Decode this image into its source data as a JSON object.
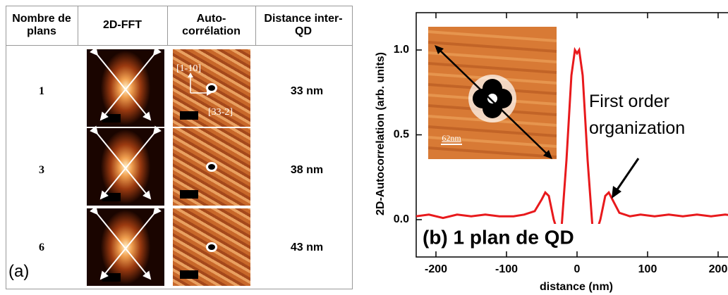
{
  "table": {
    "headers": [
      "Nombre de plans",
      "2D-FFT",
      "Auto-corrélation",
      "Distance inter-QD"
    ],
    "rows": [
      [
        "1",
        "33 nm"
      ],
      [
        "3",
        "38 nm"
      ],
      [
        "6",
        "43 nm"
      ]
    ],
    "direction_labels": [
      "[1-10]",
      "[33-2]"
    ],
    "panel_label": "(a)"
  },
  "chart_data": {
    "type": "line",
    "panel_label": "(b) 1 plan de QD",
    "x_label": "distance (nm)",
    "y_label": "2D-Autocorrelation (arb. units)",
    "annotation": "First order organization",
    "inset_scale": "62nm",
    "x": [
      -228,
      -210,
      -190,
      -170,
      -150,
      -130,
      -110,
      -90,
      -75,
      -60,
      -50,
      -45,
      -40,
      -33,
      -27,
      -22,
      -15,
      -8,
      -3,
      0,
      3,
      8,
      15,
      22,
      27,
      33,
      40,
      45,
      50,
      60,
      75,
      90,
      110,
      130,
      150,
      170,
      190,
      210,
      230
    ],
    "values": [
      0.02,
      0.03,
      0.01,
      0.03,
      0.02,
      0.03,
      0.02,
      0.02,
      0.03,
      0.05,
      0.12,
      0.16,
      0.14,
      0.0,
      -0.08,
      -0.05,
      0.35,
      0.85,
      1.0,
      0.98,
      1.0,
      0.85,
      0.35,
      -0.05,
      -0.08,
      0.0,
      0.14,
      0.16,
      0.12,
      0.04,
      0.02,
      0.03,
      0.02,
      0.03,
      0.02,
      0.03,
      0.02,
      0.03,
      0.02
    ],
    "color": "#e8191c",
    "xlim": [
      -228,
      240
    ],
    "ylim": [
      -0.22,
      1.22
    ],
    "xticks": [
      -200,
      -100,
      0,
      100,
      200
    ],
    "yticks": [
      {
        "value": 0,
        "label": "0.0"
      },
      {
        "value": 0.5,
        "label": "0.5"
      },
      {
        "value": 1,
        "label": "1.0"
      }
    ]
  }
}
